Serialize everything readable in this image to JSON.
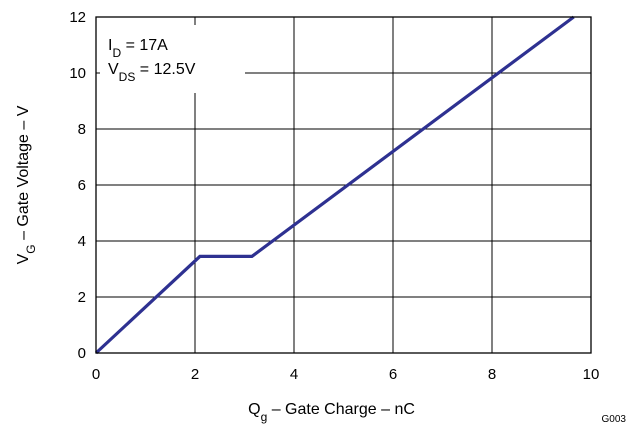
{
  "chart_data": {
    "type": "line",
    "title": "",
    "xlabel": {
      "main": "Q",
      "sub": "g",
      "rest": " – Gate Charge – nC"
    },
    "ylabel": {
      "main": "V",
      "sub": "G",
      "rest": " – Gate Voltage – V"
    },
    "xlim": [
      0,
      10
    ],
    "ylim": [
      0,
      12
    ],
    "xticks": [
      "0",
      "2",
      "4",
      "6",
      "8",
      "10"
    ],
    "yticks": [
      "0",
      "2",
      "4",
      "6",
      "8",
      "10",
      "12"
    ],
    "grid": true,
    "series": [
      {
        "x": [
          0,
          2.1,
          3.15,
          9.65
        ],
        "y": [
          0,
          3.45,
          3.45,
          12
        ],
        "color": "#2e3191"
      }
    ],
    "annotations": [
      {
        "main": "I",
        "sub": "D",
        "rest": " = 17A"
      },
      {
        "main": "V",
        "sub": "DS",
        "rest": " = 12.5V"
      }
    ],
    "figure_id": "G003"
  }
}
